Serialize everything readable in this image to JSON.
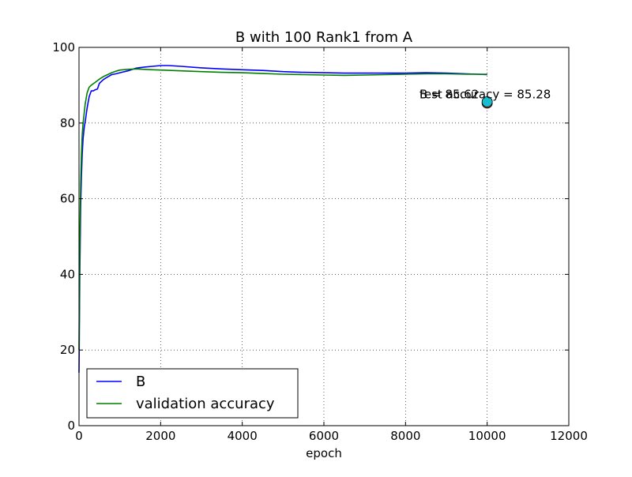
{
  "chart_data": {
    "type": "line",
    "title": "B with 100 Rank1 from A",
    "xlabel": "epoch",
    "ylabel": "",
    "xlim": [
      0,
      12000
    ],
    "ylim": [
      0,
      100
    ],
    "xticks": [
      0,
      2000,
      4000,
      6000,
      8000,
      10000,
      12000
    ],
    "yticks": [
      0,
      20,
      40,
      60,
      80,
      100
    ],
    "grid": true,
    "legend_position": "lower-left",
    "series": [
      {
        "name": "B",
        "color": "#0000ff",
        "x": [
          0,
          20,
          40,
          60,
          80,
          100,
          130,
          160,
          200,
          250,
          300,
          350,
          400,
          450,
          500,
          600,
          700,
          800,
          900,
          1000,
          1200,
          1400,
          1600,
          1800,
          2000,
          2200,
          2500,
          3000,
          3500,
          4000,
          4500,
          5000,
          5500,
          6000,
          6500,
          7000,
          7500,
          8000,
          8500,
          9000,
          9500,
          10000
        ],
        "y": [
          14,
          40,
          58,
          66,
          72,
          76,
          79,
          81,
          84,
          87,
          88.5,
          88.5,
          88.8,
          89,
          90.5,
          91.5,
          92.2,
          92.8,
          93.0,
          93.3,
          93.8,
          94.5,
          94.8,
          95.0,
          95.2,
          95.2,
          95.0,
          94.6,
          94.3,
          94.1,
          93.9,
          93.6,
          93.4,
          93.3,
          93.2,
          93.2,
          93.2,
          93.2,
          93.3,
          93.2,
          93.0,
          92.8
        ]
      },
      {
        "name": "validation accuracy",
        "color": "#008000",
        "x": [
          0,
          20,
          40,
          60,
          80,
          100,
          150,
          200,
          250,
          300,
          400,
          500,
          600,
          700,
          800,
          900,
          1000,
          1200,
          1400,
          1600,
          1800,
          2000,
          2500,
          3000,
          3500,
          4000,
          4500,
          5000,
          5500,
          6000,
          6500,
          7000,
          7500,
          8000,
          8500,
          9000,
          9500,
          10000
        ],
        "y": [
          20,
          48,
          64,
          72,
          77,
          80,
          85,
          88,
          89.5,
          90,
          90.8,
          91.6,
          92.3,
          92.8,
          93.3,
          93.7,
          94.0,
          94.2,
          94.3,
          94.2,
          94.1,
          94.0,
          93.8,
          93.6,
          93.4,
          93.3,
          93.1,
          92.9,
          92.8,
          92.7,
          92.6,
          92.7,
          92.8,
          92.9,
          93.0,
          93.0,
          92.9,
          92.9
        ]
      }
    ],
    "markers": [
      {
        "x": 10000,
        "y": 85.28,
        "color": "#c0392b"
      },
      {
        "x": 10000,
        "y": 85.62,
        "color": "#17becf"
      }
    ],
    "annotations": [
      {
        "text": "B = 85.62",
        "x": 9000,
        "y": 87.4,
        "anchor": "start"
      },
      {
        "text": "test accuracy = 85.28",
        "x": 9000,
        "y": 87.4,
        "anchor": "start"
      }
    ]
  }
}
